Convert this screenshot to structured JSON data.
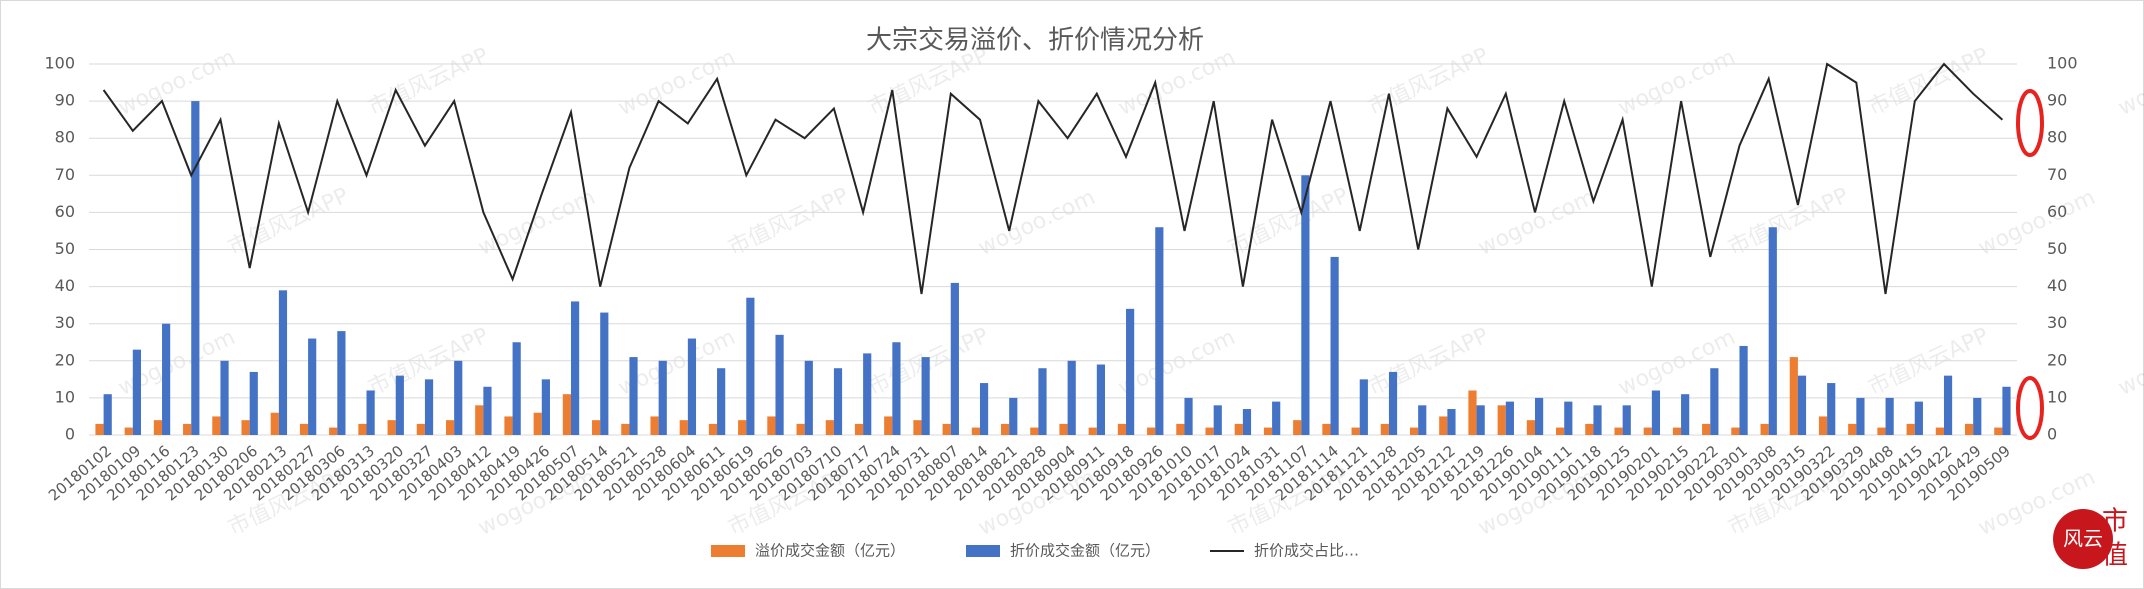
{
  "chart_data": {
    "type": "bar-line",
    "title": "大宗交易溢价、折价情况分析",
    "categories": [
      "20180102",
      "20180109",
      "20180116",
      "20180123",
      "20180130",
      "20180206",
      "20180213",
      "20180227",
      "20180306",
      "20180313",
      "20180320",
      "20180327",
      "20180403",
      "20180412",
      "20180419",
      "20180426",
      "20180507",
      "20180514",
      "20180521",
      "20180528",
      "20180604",
      "20180611",
      "20180619",
      "20180626",
      "20180703",
      "20180710",
      "20180717",
      "20180724",
      "20180731",
      "20180807",
      "20180814",
      "20180821",
      "20180828",
      "20180904",
      "20180911",
      "20180918",
      "20180926",
      "20181010",
      "20181017",
      "20181024",
      "20181031",
      "20181107",
      "20181114",
      "20181121",
      "20181128",
      "20181205",
      "20181212",
      "20181219",
      "20181226",
      "20190104",
      "20190111",
      "20190118",
      "20190125",
      "20190201",
      "20190215",
      "20190222",
      "20190301",
      "20190308",
      "20190315",
      "20190322",
      "20190329",
      "20190408",
      "20190415",
      "20190422",
      "20190429",
      "20190509"
    ],
    "series": [
      {
        "name": "溢价成交金额（亿元）",
        "color": "#ed7d31",
        "kind": "bar",
        "values": [
          3,
          2,
          4,
          3,
          5,
          4,
          6,
          3,
          2,
          3,
          4,
          3,
          4,
          8,
          5,
          6,
          11,
          4,
          3,
          5,
          4,
          3,
          4,
          5,
          3,
          4,
          3,
          5,
          4,
          3,
          2,
          3,
          2,
          3,
          2,
          3,
          2,
          3,
          2,
          3,
          2,
          4,
          3,
          2,
          3,
          2,
          5,
          12,
          8,
          4,
          2,
          3,
          2,
          2,
          2,
          3,
          2,
          3,
          21,
          5,
          3,
          2,
          3,
          2,
          3,
          2
        ]
      },
      {
        "name": "折价成交金额（亿元）",
        "color": "#4472c4",
        "kind": "bar",
        "values": [
          11,
          23,
          30,
          90,
          20,
          17,
          39,
          26,
          28,
          12,
          16,
          15,
          20,
          13,
          25,
          15,
          36,
          33,
          21,
          20,
          26,
          18,
          37,
          27,
          20,
          18,
          22,
          25,
          21,
          41,
          14,
          10,
          18,
          20,
          19,
          34,
          56,
          10,
          8,
          7,
          9,
          70,
          48,
          15,
          17,
          8,
          7,
          8,
          9,
          10,
          9,
          8,
          8,
          12,
          11,
          18,
          24,
          56,
          16,
          14,
          10,
          10,
          9,
          16,
          10,
          13
        ]
      },
      {
        "name": "折价成交占比…",
        "color": "#262626",
        "kind": "line",
        "axis": "y2",
        "values": [
          93,
          82,
          90,
          70,
          85,
          45,
          84,
          60,
          90,
          70,
          93,
          78,
          90,
          60,
          42,
          65,
          87,
          40,
          72,
          90,
          84,
          96,
          70,
          85,
          80,
          88,
          60,
          93,
          38,
          92,
          85,
          55,
          90,
          80,
          92,
          75,
          95,
          55,
          90,
          40,
          85,
          60,
          90,
          55,
          92,
          50,
          88,
          75,
          92,
          60,
          90,
          63,
          85,
          40,
          90,
          48,
          78,
          96,
          62,
          100,
          95,
          38,
          90,
          100,
          92,
          85
        ]
      }
    ],
    "ylim": [
      0,
      100
    ],
    "yticks": [
      0,
      10,
      20,
      30,
      40,
      50,
      60,
      70,
      80,
      90,
      100
    ],
    "y2lim": [
      0,
      100
    ],
    "y2ticks": [
      0,
      10,
      20,
      30,
      40,
      50,
      60,
      70,
      80,
      90,
      100
    ],
    "grid": true,
    "legend": "bottom",
    "watermarks": [
      "wogoo.com",
      "市值风云APP"
    ],
    "logo": [
      "市",
      "值",
      "风云"
    ]
  }
}
